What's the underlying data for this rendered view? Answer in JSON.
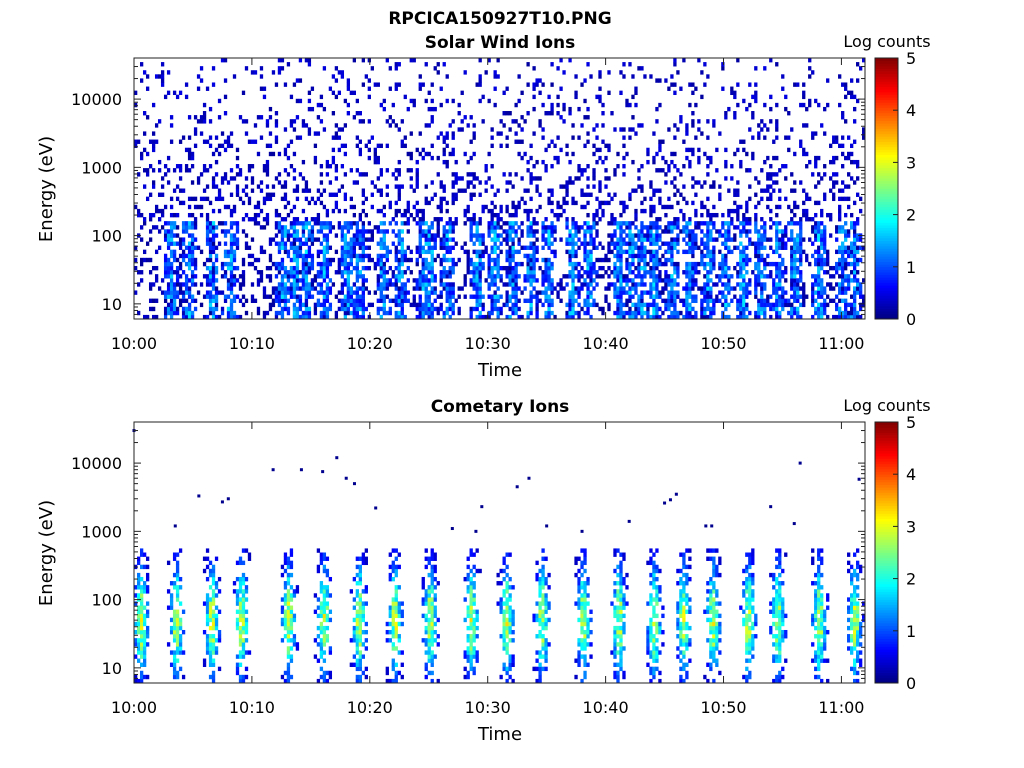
{
  "figure_title": "RPCICA150927T10.PNG",
  "chart_data": [
    {
      "type": "heatmap",
      "title": "Solar Wind Ions",
      "xlabel": "Time",
      "ylabel": "Energy (eV)",
      "x_range": [
        "10:00",
        "11:02"
      ],
      "x_ticks": [
        "10:00",
        "10:10",
        "10:20",
        "10:30",
        "10:40",
        "10:50",
        "11:00"
      ],
      "y_scale": "log",
      "y_range": [
        6,
        40000
      ],
      "y_ticks": [
        "10",
        "100",
        "1000",
        "10000"
      ],
      "colorbar": {
        "label": "Log counts",
        "range": [
          0,
          5
        ],
        "ticks": [
          "0",
          "1",
          "2",
          "3",
          "4",
          "5"
        ],
        "colormap": "jet"
      },
      "pattern": {
        "background_level": 0.25,
        "burst_minutes": [
          3,
          4.5,
          6.5,
          8,
          12.5,
          13.5,
          14.5,
          16,
          18,
          19,
          21,
          22.5,
          24.5,
          25,
          26.5,
          29,
          30.5,
          32,
          33.5,
          35,
          37,
          38.5,
          41,
          42,
          43,
          44,
          45.5,
          47,
          48.5,
          50,
          51.5,
          53,
          54.5,
          56,
          58,
          60,
          61
        ],
        "burst_energy_eV": [
          10,
          120
        ],
        "burst_peak_log_counts": 1.8,
        "upper_noise_max_eV": 40000
      }
    },
    {
      "type": "heatmap",
      "title": "Cometary Ions",
      "xlabel": "Time",
      "ylabel": "Energy (eV)",
      "x_range": [
        "10:00",
        "11:02"
      ],
      "x_ticks": [
        "10:00",
        "10:10",
        "10:20",
        "10:30",
        "10:40",
        "10:50",
        "11:00"
      ],
      "y_scale": "log",
      "y_range": [
        6,
        40000
      ],
      "y_ticks": [
        "10",
        "100",
        "1000",
        "10000"
      ],
      "colorbar": {
        "label": "Log counts",
        "range": [
          0,
          5
        ],
        "ticks": [
          "0",
          "1",
          "2",
          "3",
          "4",
          "5"
        ],
        "colormap": "jet"
      },
      "pattern": {
        "burst_minutes": [
          0.5,
          3.5,
          6.5,
          9,
          13,
          16,
          19,
          22,
          25,
          28.5,
          31.5,
          34.5,
          38,
          41,
          44,
          46.5,
          49,
          52,
          54.5,
          58,
          61
        ],
        "burst_energy_eV": [
          6,
          500
        ],
        "burst_center_eV": 45,
        "burst_peak_log_counts": 2.8,
        "sparse_high_energy_points": [
          [
            0,
            30000
          ],
          [
            5.5,
            3300
          ],
          [
            7.5,
            2700
          ],
          [
            8,
            3000
          ],
          [
            3.5,
            1200
          ],
          [
            11.8,
            8000
          ],
          [
            14.2,
            8000
          ],
          [
            16,
            7500
          ],
          [
            17.2,
            12000
          ],
          [
            18,
            6000
          ],
          [
            18.7,
            5000
          ],
          [
            20.5,
            2200
          ],
          [
            27,
            1100
          ],
          [
            29,
            1000
          ],
          [
            29.5,
            2300
          ],
          [
            32.5,
            4500
          ],
          [
            33.5,
            6000
          ],
          [
            35,
            1200
          ],
          [
            38,
            1000
          ],
          [
            42,
            1400
          ],
          [
            45,
            2600
          ],
          [
            45.5,
            2900
          ],
          [
            46,
            3500
          ],
          [
            48.5,
            1200
          ],
          [
            49,
            1200
          ],
          [
            54,
            2300
          ],
          [
            56,
            1300
          ],
          [
            56.5,
            10000
          ],
          [
            61.5,
            5800
          ]
        ]
      }
    }
  ]
}
